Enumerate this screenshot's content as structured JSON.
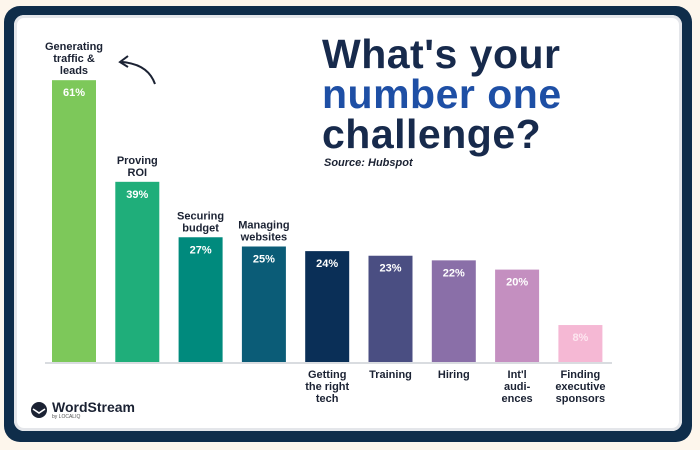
{
  "title": {
    "line1": "What's your",
    "line2": "number one",
    "line3": "challenge?"
  },
  "source": "Source: Hubspot",
  "brand": {
    "name": "WordStream",
    "sub": "by LOCALIQ"
  },
  "colors": {
    "frame": "#0f2d4a",
    "title": "#172a4c",
    "highlight": "#1e4fa5"
  },
  "chart_data": {
    "type": "bar",
    "title": "What's your number one challenge?",
    "categories": [
      "Generating traffic & leads",
      "Proving ROI",
      "Securing budget",
      "Managing websites",
      "Getting the right tech",
      "Training",
      "Hiring",
      "Int'l audi-ences",
      "Finding executive sponsors"
    ],
    "category_lines": [
      [
        "Generating",
        "traffic &",
        "leads"
      ],
      [
        "Proving",
        "ROI"
      ],
      [
        "Securing",
        "budget"
      ],
      [
        "Managing",
        "websites"
      ],
      [
        "Getting",
        "the right",
        "tech"
      ],
      [
        "Training"
      ],
      [
        "Hiring"
      ],
      [
        "Int'l",
        "audi-",
        "ences"
      ],
      [
        "Finding",
        "executive",
        "sponsors"
      ]
    ],
    "label_position": [
      "top",
      "top",
      "top",
      "top",
      "bottom",
      "bottom",
      "bottom",
      "bottom",
      "bottom"
    ],
    "values": [
      61,
      39,
      27,
      25,
      24,
      23,
      22,
      20,
      8
    ],
    "data_labels": [
      "61%",
      "39%",
      "27%",
      "25%",
      "24%",
      "23%",
      "22%",
      "20%",
      "8%"
    ],
    "bar_colors": [
      "#7dc85a",
      "#1fae7a",
      "#008a7d",
      "#0b5c77",
      "#0a2f57",
      "#4a4e82",
      "#8a6fa8",
      "#c48fc0",
      "#f5b8d4"
    ],
    "unit": "%",
    "grid": false,
    "annotation": "arrow pointing to top category"
  }
}
